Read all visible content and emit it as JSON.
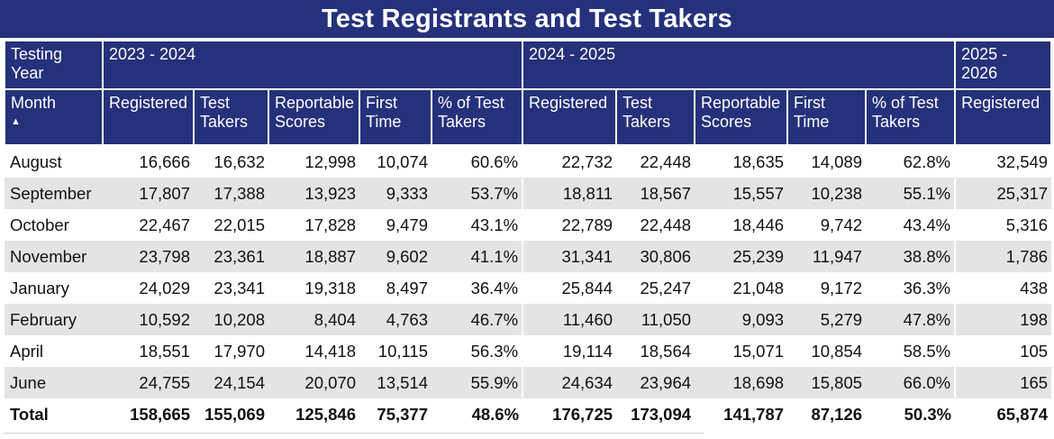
{
  "title": "Test Registrants and Test Takers",
  "colors": {
    "header_bg": "#25317a",
    "header_text": "#ffffff",
    "band": "#e4e4e4"
  },
  "header": {
    "year_label": "Testing Year",
    "years": [
      "2023 - 2024",
      "2024 - 2025",
      "2025 - 2026"
    ],
    "month_label": "Month",
    "sort_indicator": "▲",
    "columns": [
      "Registered",
      "Test Takers",
      "Reportable Scores",
      "First Time",
      "% of Test Takers",
      "Registered",
      "Test Takers",
      "Reportable Scores",
      "First Time",
      "% of Test Takers",
      "Registered"
    ]
  },
  "rows": [
    {
      "month": "August",
      "values": [
        "16,666",
        "16,632",
        "12,998",
        "10,074",
        "60.6%",
        "22,732",
        "22,448",
        "18,635",
        "14,089",
        "62.8%",
        "32,549"
      ]
    },
    {
      "month": "September",
      "values": [
        "17,807",
        "17,388",
        "13,923",
        "9,333",
        "53.7%",
        "18,811",
        "18,567",
        "15,557",
        "10,238",
        "55.1%",
        "25,317"
      ]
    },
    {
      "month": "October",
      "values": [
        "22,467",
        "22,015",
        "17,828",
        "9,479",
        "43.1%",
        "22,789",
        "22,448",
        "18,446",
        "9,742",
        "43.4%",
        "5,316"
      ]
    },
    {
      "month": "November",
      "values": [
        "23,798",
        "23,361",
        "18,887",
        "9,602",
        "41.1%",
        "31,341",
        "30,806",
        "25,239",
        "11,947",
        "38.8%",
        "1,786"
      ]
    },
    {
      "month": "January",
      "values": [
        "24,029",
        "23,341",
        "19,318",
        "8,497",
        "36.4%",
        "25,844",
        "25,247",
        "21,048",
        "9,172",
        "36.3%",
        "438"
      ]
    },
    {
      "month": "February",
      "values": [
        "10,592",
        "10,208",
        "8,404",
        "4,763",
        "46.7%",
        "11,460",
        "11,050",
        "9,093",
        "5,279",
        "47.8%",
        "198"
      ]
    },
    {
      "month": "April",
      "values": [
        "18,551",
        "17,970",
        "14,418",
        "10,115",
        "56.3%",
        "19,114",
        "18,564",
        "15,071",
        "10,854",
        "58.5%",
        "105"
      ]
    },
    {
      "month": "June",
      "values": [
        "24,755",
        "24,154",
        "20,070",
        "13,514",
        "55.9%",
        "24,634",
        "23,964",
        "18,698",
        "15,805",
        "66.0%",
        "165"
      ]
    }
  ],
  "total": {
    "label": "Total",
    "values": [
      "158,665",
      "155,069",
      "125,846",
      "75,377",
      "48.6%",
      "176,725",
      "173,094",
      "141,787",
      "87,126",
      "50.3%",
      "65,874"
    ]
  }
}
